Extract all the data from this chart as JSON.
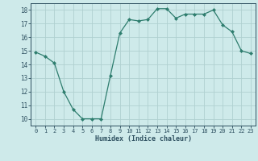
{
  "x": [
    0,
    1,
    2,
    3,
    4,
    5,
    6,
    7,
    8,
    9,
    10,
    11,
    12,
    13,
    14,
    15,
    16,
    17,
    18,
    19,
    20,
    21,
    22,
    23
  ],
  "y": [
    14.9,
    14.6,
    14.1,
    12.0,
    10.7,
    10.0,
    10.0,
    10.0,
    13.2,
    16.3,
    17.3,
    17.2,
    17.3,
    18.1,
    18.1,
    17.4,
    17.7,
    17.7,
    17.7,
    18.0,
    16.9,
    16.4,
    15.0,
    14.8
  ],
  "xlabel": "Humidex (Indice chaleur)",
  "xlim": [
    -0.5,
    23.5
  ],
  "ylim": [
    9.5,
    18.5
  ],
  "yticks": [
    10,
    11,
    12,
    13,
    14,
    15,
    16,
    17,
    18
  ],
  "xticks": [
    0,
    1,
    2,
    3,
    4,
    5,
    6,
    7,
    8,
    9,
    10,
    11,
    12,
    13,
    14,
    15,
    16,
    17,
    18,
    19,
    20,
    21,
    22,
    23
  ],
  "line_color": "#2e7d6e",
  "marker_color": "#2e7d6e",
  "bg_color": "#ceeaea",
  "grid_color": "#b0d0d0",
  "text_color": "#2e5060",
  "font_family": "monospace"
}
